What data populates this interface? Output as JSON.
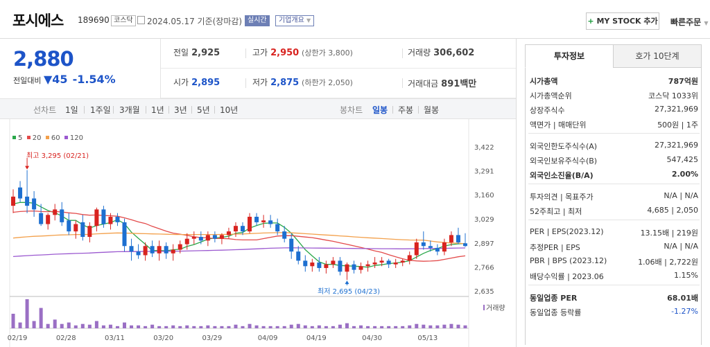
{
  "header": {
    "name": "포시에스",
    "code": "189690",
    "market_tag": "코스닥",
    "date": "2024.05.17",
    "basis": "기준(장마감)",
    "realtime_label": "실시간",
    "corp_label": "기업개요",
    "mystock_label": "MY STOCK 추가",
    "quick_order_label": "빠른주문"
  },
  "price": {
    "current": "2,880",
    "change_label": "전일대비",
    "change_value": "45",
    "change_rate": "-1.54%"
  },
  "summary": {
    "prev_close_label": "전일",
    "prev_close": "2,925",
    "high_label": "고가",
    "high": "2,950",
    "upper_limit": "(상한가 3,800)",
    "volume_label": "거래량",
    "volume": "306,602",
    "open_label": "시가",
    "open": "2,895",
    "low_label": "저가",
    "low": "2,875",
    "lower_limit": "(하한가 2,050)",
    "amount_label": "거래대금",
    "amount": "891",
    "amount_unit": "백만"
  },
  "period_bar": {
    "line_label": "선차트",
    "periods": [
      "1일",
      "1주일",
      "3개월",
      "1년",
      "3년",
      "5년",
      "10년"
    ],
    "candle_label": "봉차트",
    "candles": [
      "일봉",
      "주봉",
      "월봉"
    ],
    "active_candle": "일봉"
  },
  "chart_data": {
    "type": "candlestick",
    "legend": [
      {
        "name": "5",
        "color": "#2aa84a"
      },
      {
        "name": "20",
        "color": "#e34a4a"
      },
      {
        "name": "60",
        "color": "#f3a04b"
      },
      {
        "name": "120",
        "color": "#9b59d0"
      }
    ],
    "yticks": [
      "3,422",
      "3,291",
      "3,160",
      "3,029",
      "2,897",
      "2,766",
      "2,635"
    ],
    "ylim": [
      2635,
      3422
    ],
    "xticks": [
      "02/19",
      "02/28",
      "03/11",
      "03/20",
      "03/29",
      "04/09",
      "04/19",
      "04/30",
      "05/13"
    ],
    "high_annot": "최고 3,295 (02/21)",
    "low_annot": "최저 2,695 (04/23)",
    "volume_label": "거래량",
    "candles": [
      [
        3100,
        3190,
        3060,
        3150
      ],
      [
        3200,
        3235,
        3120,
        3140
      ],
      [
        3150,
        3295,
        3060,
        3100
      ],
      [
        3140,
        3180,
        3040,
        3080
      ],
      [
        3060,
        3110,
        2990,
        3000
      ],
      [
        3000,
        3060,
        2970,
        3050
      ],
      [
        3050,
        3110,
        3020,
        3080
      ],
      [
        3080,
        3120,
        2990,
        3010
      ],
      [
        3020,
        3060,
        2940,
        2960
      ],
      [
        2960,
        3020,
        2920,
        3000
      ],
      [
        3010,
        3050,
        2910,
        2930
      ],
      [
        2930,
        3010,
        2900,
        2990
      ],
      [
        2990,
        3090,
        2960,
        3080
      ],
      [
        3080,
        3100,
        2980,
        3000
      ],
      [
        3000,
        3060,
        2970,
        3040
      ],
      [
        3040,
        3060,
        2990,
        3010
      ],
      [
        3010,
        3030,
        2850,
        2880
      ],
      [
        2880,
        2920,
        2800,
        2850
      ],
      [
        2850,
        2890,
        2810,
        2830
      ],
      [
        2830,
        2900,
        2800,
        2880
      ],
      [
        2880,
        2910,
        2820,
        2840
      ],
      [
        2840,
        2910,
        2800,
        2880
      ],
      [
        2880,
        2900,
        2810,
        2840
      ],
      [
        2840,
        2890,
        2800,
        2860
      ],
      [
        2860,
        2910,
        2840,
        2890
      ],
      [
        2890,
        2950,
        2860,
        2920
      ],
      [
        2920,
        2960,
        2890,
        2930
      ],
      [
        2930,
        2960,
        2890,
        2910
      ],
      [
        2910,
        2960,
        2880,
        2940
      ],
      [
        2940,
        2960,
        2900,
        2920
      ],
      [
        2920,
        2950,
        2890,
        2940
      ],
      [
        2940,
        2980,
        2920,
        2960
      ],
      [
        2960,
        3010,
        2930,
        2990
      ],
      [
        2990,
        3010,
        2940,
        2960
      ],
      [
        2960,
        3060,
        2950,
        3040
      ],
      [
        3040,
        3060,
        2990,
        3010
      ],
      [
        3010,
        3050,
        2980,
        3020
      ],
      [
        3020,
        3050,
        2980,
        3000
      ],
      [
        3000,
        3030,
        2940,
        2960
      ],
      [
        2960,
        2990,
        2900,
        2920
      ],
      [
        2920,
        2950,
        2810,
        2850
      ],
      [
        2850,
        2880,
        2780,
        2800
      ],
      [
        2800,
        2830,
        2740,
        2770
      ],
      [
        2770,
        2810,
        2740,
        2790
      ],
      [
        2790,
        2820,
        2740,
        2760
      ],
      [
        2760,
        2800,
        2730,
        2780
      ],
      [
        2780,
        2820,
        2760,
        2800
      ],
      [
        2800,
        2820,
        2720,
        2740
      ],
      [
        2740,
        2790,
        2695,
        2780
      ],
      [
        2780,
        2800,
        2730,
        2750
      ],
      [
        2750,
        2790,
        2730,
        2770
      ],
      [
        2770,
        2800,
        2740,
        2780
      ],
      [
        2780,
        2820,
        2760,
        2790
      ],
      [
        2790,
        2820,
        2770,
        2800
      ],
      [
        2800,
        2810,
        2760,
        2780
      ],
      [
        2780,
        2810,
        2760,
        2790
      ],
      [
        2790,
        2810,
        2770,
        2800
      ],
      [
        2800,
        2850,
        2780,
        2830
      ],
      [
        2830,
        2920,
        2810,
        2900
      ],
      [
        2900,
        2960,
        2860,
        2880
      ],
      [
        2880,
        2910,
        2850,
        2870
      ],
      [
        2870,
        2890,
        2830,
        2850
      ],
      [
        2850,
        2920,
        2830,
        2900
      ],
      [
        2900,
        2960,
        2880,
        2940
      ],
      [
        2940,
        2980,
        2890,
        2900
      ],
      [
        2895,
        2950,
        2875,
        2880
      ]
    ],
    "volumes": [
      20,
      8,
      40,
      10,
      28,
      6,
      12,
      6,
      8,
      4,
      6,
      5,
      10,
      4,
      5,
      3,
      8,
      4,
      4,
      3,
      5,
      3,
      3,
      4,
      3,
      4,
      3,
      3,
      4,
      3,
      3,
      3,
      5,
      3,
      6,
      4,
      3,
      3,
      3,
      3,
      5,
      6,
      4,
      3,
      4,
      3,
      3,
      5,
      7,
      3,
      4,
      3,
      3,
      3,
      3,
      3,
      3,
      4,
      6,
      5,
      4,
      4,
      5,
      6,
      5,
      4
    ]
  },
  "invest_panel": {
    "tab_invest": "투자정보",
    "tab_orderbook": "호가 10단계",
    "rows1": [
      {
        "k": "시가총액",
        "v": "787억원",
        "bold": true
      },
      {
        "k": "시가총액순위",
        "v": "코스닥 1033위"
      },
      {
        "k": "상장주식수",
        "v": "27,321,969"
      },
      {
        "k": "액면가 | 매매단위",
        "v": "500원 | 1주"
      }
    ],
    "rows2": [
      {
        "k": "외국인한도주식수(A)",
        "v": "27,321,969"
      },
      {
        "k": "외국인보유주식수(B)",
        "v": "547,425"
      },
      {
        "k": "외국인소진율(B/A)",
        "v": "2.00%",
        "bold": true
      }
    ],
    "rows3": [
      {
        "k": "투자의견 | 목표주가",
        "v": "N/A | N/A"
      },
      {
        "k": "52주최고 | 최저",
        "v": "4,685 | 2,050"
      }
    ],
    "rows4": [
      {
        "k": "PER | EPS(2023.12)",
        "v": "13.15배 | 219원"
      },
      {
        "k": "추정PER | EPS",
        "v": "N/A | N/A"
      },
      {
        "k": "PBR | BPS (2023.12)",
        "v": "1.06배 | 2,722원"
      },
      {
        "k": "배당수익률 | 2023.06",
        "v": "1.15%"
      }
    ],
    "rows5": [
      {
        "k": "동일업종 PER",
        "v": "68.01배",
        "bold": true
      },
      {
        "k": "동일업종 등락률",
        "v": "-1.27%",
        "blue": true
      }
    ]
  }
}
